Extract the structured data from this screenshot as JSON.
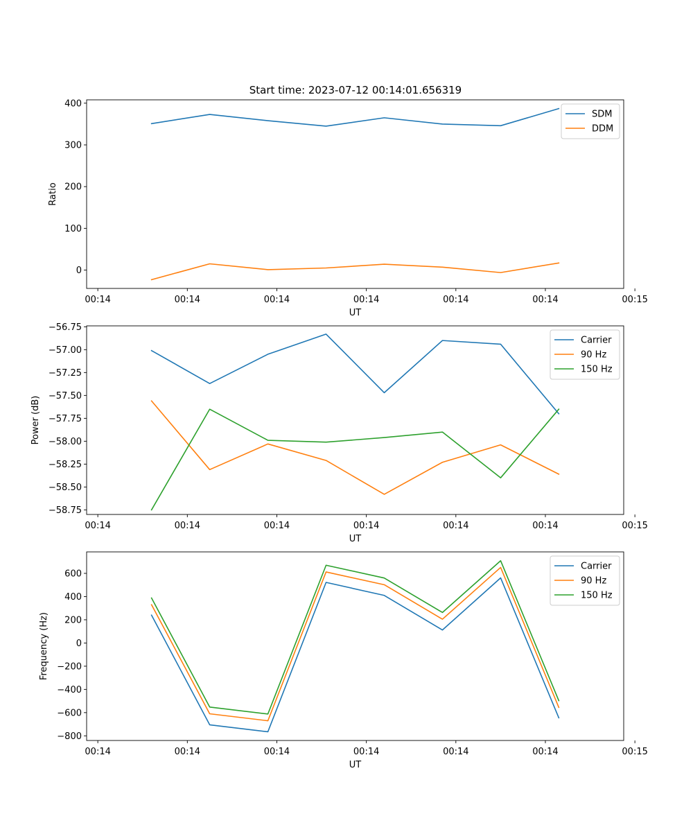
{
  "figure_title": "Start time: 2023-07-12 00:14:01.656319",
  "chart_data": [
    {
      "type": "line",
      "title": "Start time: 2023-07-12 00:14:01.656319",
      "xlabel": "UT",
      "ylabel": "Ratio",
      "x": [
        0.81,
        1.33,
        1.85,
        2.37,
        2.89,
        3.41,
        3.93,
        4.45
      ],
      "xlim": [
        0.23,
        5.03
      ],
      "xticks": [
        0.33,
        1.13,
        1.93,
        2.73,
        3.53,
        4.33,
        5.13
      ],
      "xtick_labels": [
        "00:14",
        "00:14",
        "00:14",
        "00:14",
        "00:14",
        "00:14",
        "00:15"
      ],
      "ylim": [
        -44,
        408
      ],
      "yticks": [
        0,
        100,
        200,
        300,
        400
      ],
      "ytick_labels": [
        "0",
        "100",
        "200",
        "300",
        "400"
      ],
      "legend": "top-right",
      "series": [
        {
          "name": "SDM",
          "color": "#1f77b4",
          "values": [
            351,
            373,
            358,
            345,
            365,
            350,
            346,
            387
          ]
        },
        {
          "name": "DDM",
          "color": "#ff7f0e",
          "values": [
            -23,
            15,
            1,
            5,
            14,
            7,
            -6,
            17
          ]
        }
      ]
    },
    {
      "type": "line",
      "title": "",
      "xlabel": "UT",
      "ylabel": "Power (dB)",
      "x": [
        0.81,
        1.33,
        1.85,
        2.37,
        2.89,
        3.41,
        3.93,
        4.45
      ],
      "xlim": [
        0.23,
        5.03
      ],
      "xticks": [
        0.33,
        1.13,
        1.93,
        2.73,
        3.53,
        4.33,
        5.13
      ],
      "xtick_labels": [
        "00:14",
        "00:14",
        "00:14",
        "00:14",
        "00:14",
        "00:14",
        "00:15"
      ],
      "ylim": [
        -58.8,
        -56.74
      ],
      "yticks": [
        -58.75,
        -58.5,
        -58.25,
        -58.0,
        -57.75,
        -57.5,
        -57.25,
        -57.0,
        -56.75
      ],
      "ytick_labels": [
        "−58.75",
        "−58.50",
        "−58.25",
        "−58.00",
        "−57.75",
        "−57.50",
        "−57.25",
        "−57.00",
        "−56.75"
      ],
      "legend": "top-right",
      "series": [
        {
          "name": "Carrier",
          "color": "#1f77b4",
          "values": [
            -57.01,
            -57.37,
            -57.05,
            -56.83,
            -57.47,
            -56.9,
            -56.94,
            -57.7
          ]
        },
        {
          "name": "90 Hz",
          "color": "#ff7f0e",
          "values": [
            -57.56,
            -58.31,
            -58.03,
            -58.21,
            -58.58,
            -58.23,
            -58.04,
            -58.36
          ]
        },
        {
          "name": "150 Hz",
          "color": "#2ca02c",
          "values": [
            -58.75,
            -57.65,
            -57.99,
            -58.01,
            -57.96,
            -57.9,
            -58.4,
            -57.65
          ]
        }
      ]
    },
    {
      "type": "line",
      "title": "",
      "xlabel": "UT",
      "ylabel": "Frequency (Hz)",
      "x": [
        0.81,
        1.33,
        1.85,
        2.37,
        2.89,
        3.41,
        3.93,
        4.45
      ],
      "xlim": [
        0.23,
        5.03
      ],
      "xticks": [
        0.33,
        1.13,
        1.93,
        2.73,
        3.53,
        4.33,
        5.13
      ],
      "xtick_labels": [
        "00:14",
        "00:14",
        "00:14",
        "00:14",
        "00:14",
        "00:14",
        "00:15"
      ],
      "ylim": [
        -840,
        785
      ],
      "yticks": [
        -800,
        -600,
        -400,
        -200,
        0,
        200,
        400,
        600
      ],
      "ytick_labels": [
        "−800",
        "−600",
        "−400",
        "−200",
        "0",
        "200",
        "400",
        "600"
      ],
      "legend": "top-right",
      "series": [
        {
          "name": "Carrier",
          "color": "#1f77b4",
          "values": [
            240,
            -705,
            -765,
            522,
            410,
            112,
            561,
            -645
          ]
        },
        {
          "name": "90 Hz",
          "color": "#ff7f0e",
          "values": [
            330,
            -610,
            -670,
            612,
            502,
            205,
            651,
            -555
          ]
        },
        {
          "name": "150 Hz",
          "color": "#2ca02c",
          "values": [
            388,
            -552,
            -612,
            670,
            560,
            263,
            709,
            -497
          ]
        }
      ]
    }
  ]
}
